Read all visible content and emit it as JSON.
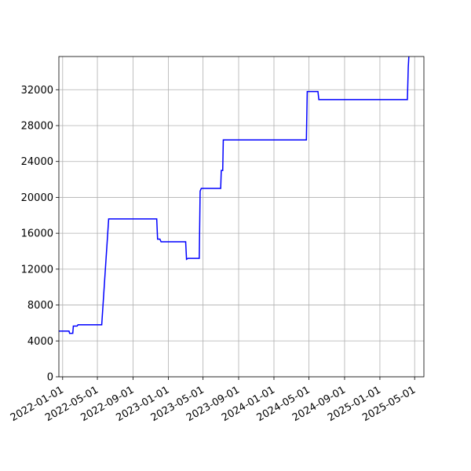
{
  "chart_data": {
    "type": "line",
    "title": "",
    "xlabel": "",
    "ylabel": "",
    "grid": true,
    "xlim": [
      "2021-12-19",
      "2025-06-02"
    ],
    "ylim": [
      0,
      35700
    ],
    "xticks": [
      "2022-01-01",
      "2022-05-01",
      "2022-09-01",
      "2023-01-01",
      "2023-05-01",
      "2023-09-01",
      "2024-01-01",
      "2024-05-01",
      "2024-09-01",
      "2025-01-01",
      "2025-05-01"
    ],
    "yticks": [
      0,
      4000,
      8000,
      12000,
      16000,
      20000,
      24000,
      28000,
      32000
    ],
    "series": [
      {
        "color": "#0000ff",
        "points": [
          [
            "2021-12-19",
            5100
          ],
          [
            "2022-01-23",
            5100
          ],
          [
            "2022-01-25",
            4850
          ],
          [
            "2022-02-05",
            4850
          ],
          [
            "2022-02-07",
            5650
          ],
          [
            "2022-02-20",
            5650
          ],
          [
            "2022-02-23",
            5800
          ],
          [
            "2022-05-16",
            5800
          ],
          [
            "2022-06-09",
            17600
          ],
          [
            "2022-11-22",
            17600
          ],
          [
            "2022-11-25",
            15350
          ],
          [
            "2022-12-03",
            15350
          ],
          [
            "2022-12-07",
            15050
          ],
          [
            "2023-03-02",
            15050
          ],
          [
            "2023-03-05",
            13100
          ],
          [
            "2023-03-10",
            13200
          ],
          [
            "2023-04-18",
            13200
          ],
          [
            "2023-04-21",
            20700
          ],
          [
            "2023-04-25",
            21000
          ],
          [
            "2023-07-01",
            21000
          ],
          [
            "2023-07-03",
            23000
          ],
          [
            "2023-07-08",
            23000
          ],
          [
            "2023-07-10",
            26400
          ],
          [
            "2024-04-22",
            26400
          ],
          [
            "2024-04-25",
            31800
          ],
          [
            "2024-06-01",
            31800
          ],
          [
            "2024-06-04",
            30900
          ],
          [
            "2025-04-06",
            30900
          ],
          [
            "2025-04-09",
            34500
          ],
          [
            "2025-04-11",
            35700
          ]
        ]
      }
    ]
  }
}
